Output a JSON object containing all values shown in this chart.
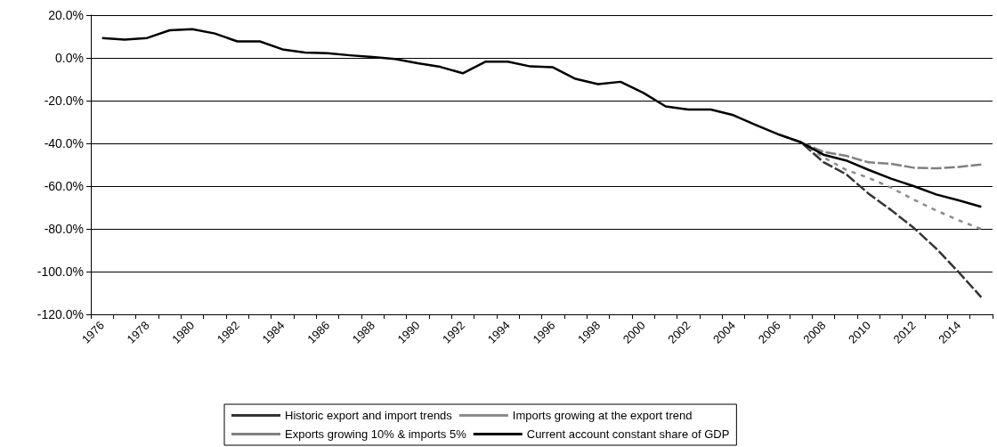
{
  "chart_data": {
    "type": "line",
    "categories": [
      "1976",
      null,
      "1978",
      null,
      "1980",
      null,
      "1982",
      null,
      "1984",
      null,
      "1986",
      null,
      "1988",
      null,
      "1990",
      null,
      "1992",
      null,
      "1994",
      null,
      "1996",
      null,
      "1998",
      null,
      "2000",
      null,
      "2002",
      null,
      "2004",
      null,
      "2006",
      null,
      "2008",
      null,
      "2010",
      null,
      "2012",
      null,
      "2014",
      null
    ],
    "series": [
      {
        "name": "Historic export and import trends",
        "color": "#333333",
        "line_style": "dashed",
        "values": [
          null,
          null,
          null,
          null,
          null,
          null,
          null,
          null,
          null,
          null,
          null,
          null,
          null,
          null,
          null,
          null,
          null,
          null,
          null,
          null,
          null,
          null,
          null,
          null,
          null,
          null,
          null,
          null,
          null,
          null,
          -35.8,
          -39.5,
          -48.8,
          -54.4,
          -63.5,
          -71.2,
          -79.5,
          -89.2,
          -100.3,
          -112
        ]
      },
      {
        "name": "Imports growing at the export trend",
        "color": "#8c8c8c",
        "line_style": "dotted",
        "values": [
          null,
          null,
          null,
          null,
          null,
          null,
          null,
          null,
          null,
          null,
          null,
          null,
          null,
          null,
          null,
          null,
          null,
          null,
          null,
          null,
          null,
          null,
          null,
          null,
          null,
          null,
          null,
          null,
          null,
          null,
          null,
          -39.5,
          -46.5,
          -52.4,
          -56.1,
          -60.7,
          -66.3,
          -71.4,
          -76,
          -80.1
        ]
      },
      {
        "name": "Exports growing 10% & imports 5%",
        "color": "#808080",
        "line_style": "dashed",
        "values": [
          null,
          null,
          null,
          null,
          null,
          null,
          null,
          null,
          null,
          null,
          null,
          null,
          null,
          null,
          null,
          null,
          null,
          null,
          null,
          null,
          null,
          null,
          null,
          null,
          null,
          null,
          null,
          null,
          null,
          null,
          null,
          -39.5,
          -44,
          -45.8,
          -48.9,
          -49.6,
          -51.4,
          -51.7,
          -51,
          -49.9
        ]
      },
      {
        "name": "Current account constant share of GDP",
        "color": "#000000",
        "line_style": "solid",
        "values": [
          9.3,
          8.5,
          9.3,
          12.9,
          13.4,
          11.4,
          7.7,
          7.7,
          4.0,
          2.5,
          2.2,
          1.2,
          0.4,
          -0.5,
          -2.5,
          -4.2,
          -7.2,
          -1.8,
          -1.8,
          -4.0,
          -4.4,
          -9.8,
          -12.3,
          -11.2,
          -16.3,
          -22.7,
          -24.2,
          -24.2,
          -26.8,
          -31.4,
          -35.8,
          -39.5,
          -45.3,
          -48,
          -52.4,
          -56.5,
          -60,
          -63.9,
          -66.7,
          -69.7
        ]
      }
    ],
    "ylim": [
      -120,
      20
    ],
    "yticks": [
      {
        "value": -120,
        "label": "-120.0%"
      },
      {
        "value": -100,
        "label": "-100.0%"
      },
      {
        "value": -80,
        "label": "-80.0%"
      },
      {
        "value": -60,
        "label": "-60.0%"
      },
      {
        "value": -40,
        "label": "-40.0%"
      },
      {
        "value": -20,
        "label": "-20.0%"
      },
      {
        "value": 0,
        "label": "0.0%"
      },
      {
        "value": 20,
        "label": "20.0%"
      }
    ],
    "grid": "y",
    "legend": "bottom",
    "marker": "none"
  }
}
